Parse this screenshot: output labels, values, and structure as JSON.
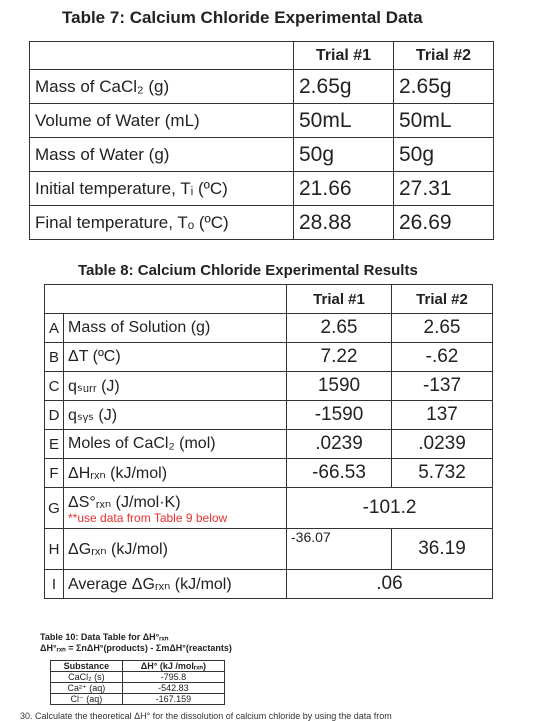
{
  "table7": {
    "title": "Table 7:  Calcium Chloride Experimental Data",
    "headers": [
      "",
      "Trial #1",
      "Trial #2"
    ],
    "rows": [
      {
        "label": "Mass of  CaCl₂ (g)",
        "t1": "2.65g",
        "t2": "2.65g"
      },
      {
        "label": "Volume of Water (mL)",
        "t1": "50mL",
        "t2": "50mL"
      },
      {
        "label": "Mass of Water (g)",
        "t1": "50g",
        "t2": "50g"
      },
      {
        "label": "Initial temperature, Tᵢ (ºC)",
        "t1": "21.66",
        "t2": "27.31"
      },
      {
        "label": "Final temperature, Tₒ (ºC)",
        "t1": "28.88",
        "t2": "26.69"
      }
    ]
  },
  "table8": {
    "title": "Table 8:  Calcium Chloride Experimental Results",
    "headers": [
      "Trial #1",
      "Trial #2"
    ],
    "rows": [
      {
        "letter": "A",
        "label": "Mass of Solution (g)",
        "t1": "2.65",
        "t2": "2.65"
      },
      {
        "letter": "B",
        "label": "ΔT (ºC)",
        "t1": "7.22",
        "t2": "-.62"
      },
      {
        "letter": "C",
        "label": "qₛᵤᵣᵣ (J)",
        "t1": "1590",
        "t2": "-137"
      },
      {
        "letter": "D",
        "label": "qₛᵧₛ (J)",
        "t1": "-1590",
        "t2": "137"
      },
      {
        "letter": "E",
        "label": "Moles of  CaCl₂ (mol)",
        "t1": ".0239",
        "t2": ".0239"
      },
      {
        "letter": "F",
        "label": "ΔHᵣₓₙ (kJ/mol)",
        "t1": "-66.53",
        "t2": "5.732"
      }
    ],
    "row_g": {
      "letter": "G",
      "label": "ΔS°ᵣₓₙ (J/mol·K)",
      "note": "**use data from Table 9 below",
      "value": "-101.2"
    },
    "row_h": {
      "letter": "H",
      "label": "ΔGᵣₓₙ (kJ/mol)",
      "t1": "-36.07",
      "t2": "36.19"
    },
    "row_i": {
      "letter": "I",
      "label": "Average ΔGᵣₓₙ (kJ/mol)",
      "value": ".06"
    }
  },
  "table10": {
    "title": "Table 10: Data Table for ΔH°ᵣₓₙ",
    "equation": "ΔH°ᵣₓₙ = ΣnΔH°(products) - ΣmΔH°(reactants)",
    "headers": [
      "Substance",
      "ΔH° (kJ /molᵣₓₙ)"
    ],
    "rows": [
      {
        "substance": "CaCl₂ (s)",
        "value": "-795.8"
      },
      {
        "substance": "Ca²⁺ (aq)",
        "value": "-542.83"
      },
      {
        "substance": "Cl⁻ (aq)",
        "value": "-167.159"
      }
    ]
  },
  "footer_fragment": "30.   Calculate the theoretical ΔH° for the dissolution of calcium chloride by using the data from"
}
